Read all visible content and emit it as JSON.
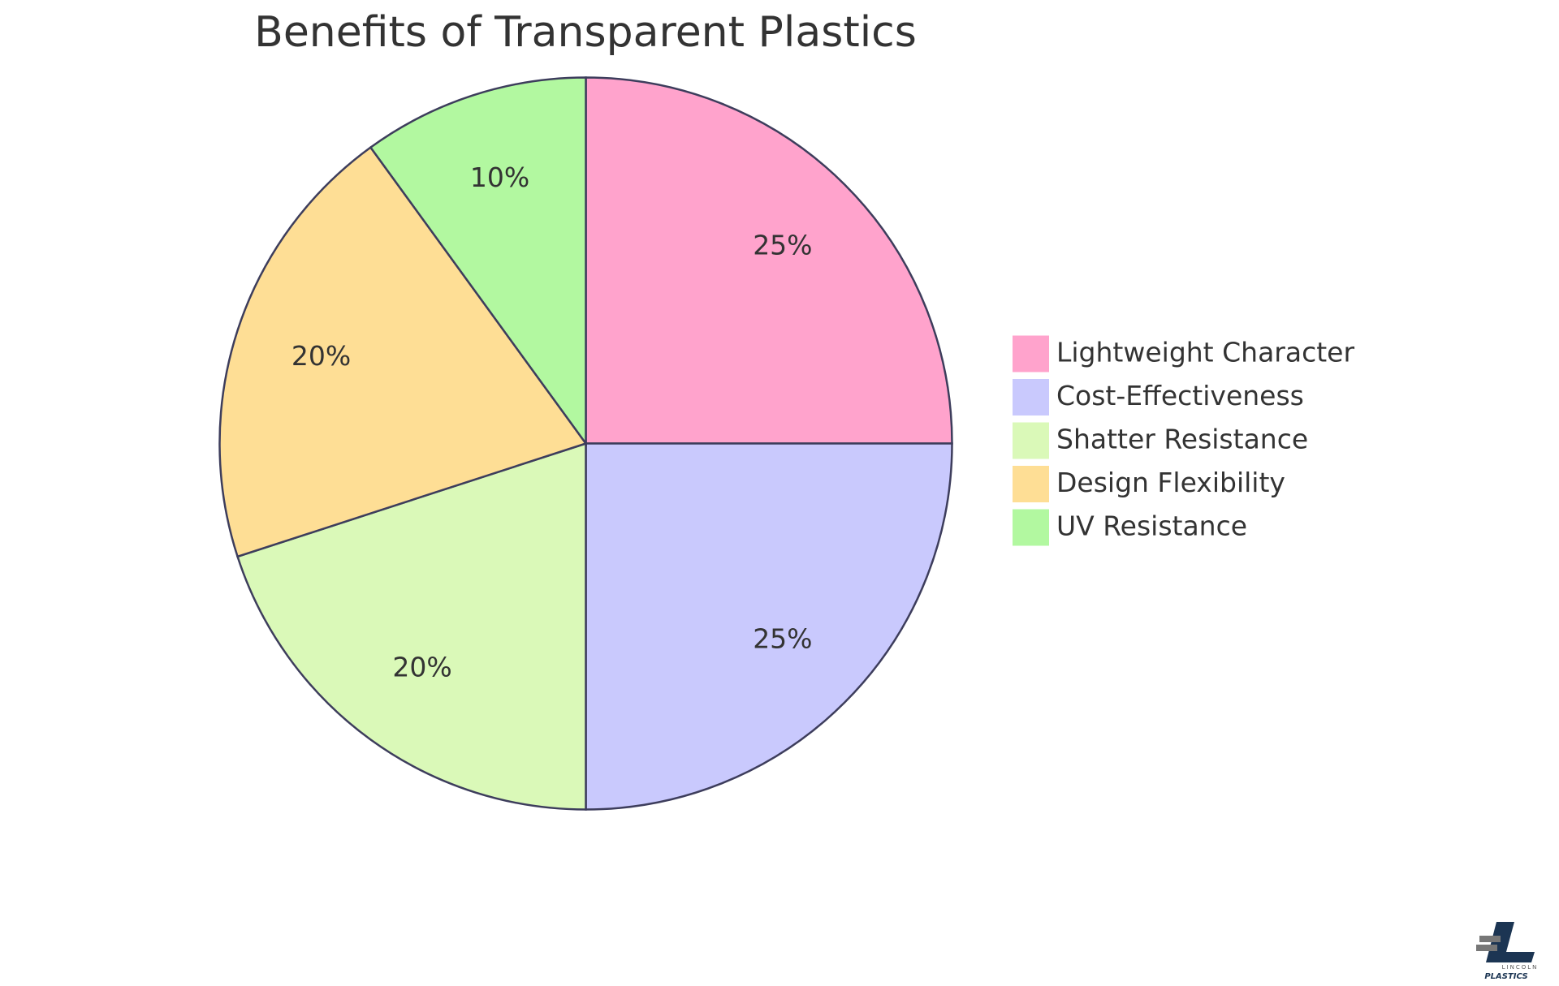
{
  "chart_data": {
    "type": "pie",
    "title": "Benefits of Transparent Plastics",
    "categories": [
      "Lightweight Character",
      "Cost-Effectiveness",
      "Shatter Resistance",
      "Design Flexibility",
      "UV Resistance"
    ],
    "values": [
      25,
      25,
      20,
      20,
      10
    ],
    "value_labels": [
      "25%",
      "25%",
      "20%",
      "20%",
      "10%"
    ],
    "colors": [
      "#ffa3cc",
      "#c9c9fd",
      "#daf9b8",
      "#fede95",
      "#b2f8a0"
    ],
    "legend": "right"
  },
  "logo": {
    "line1": "LINCOLN",
    "line2": "PLASTICS"
  }
}
